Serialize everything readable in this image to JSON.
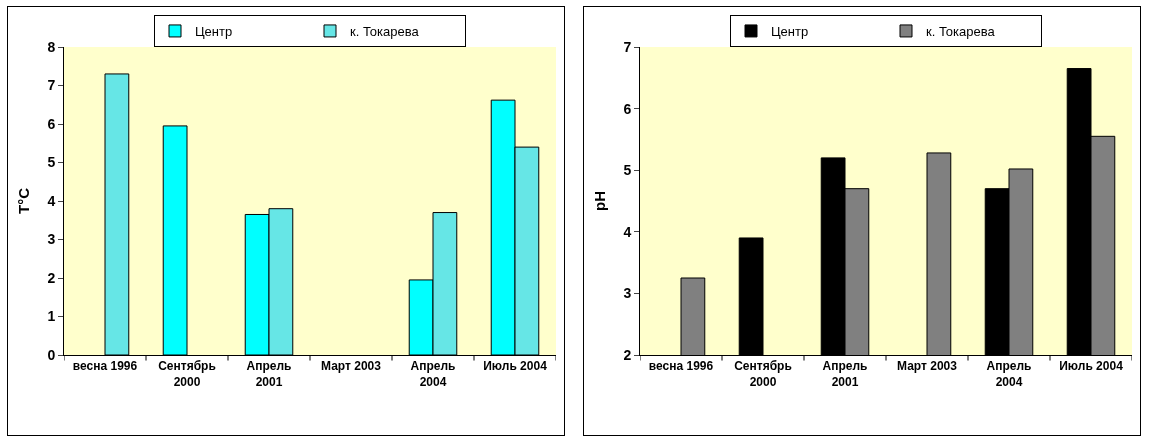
{
  "chart_data": [
    {
      "type": "bar",
      "ylabel": "T°C",
      "categories": [
        "весна 1996",
        "Сентябрь 2000",
        "Апрель 2001",
        "Март 2003",
        "Апрель 2004",
        "Июль 2004"
      ],
      "series": [
        {
          "name": "Центр",
          "color": "#00ffff",
          "values": [
            null,
            5.95,
            3.65,
            null,
            1.95,
            6.62
          ]
        },
        {
          "name": "к. Токарева",
          "color": "#66e6e6",
          "values": [
            7.3,
            null,
            3.8,
            null,
            3.7,
            5.4
          ]
        }
      ],
      "ylim": [
        0,
        8
      ],
      "yticks": [
        0,
        1,
        2,
        3,
        4,
        5,
        6,
        7,
        8
      ],
      "grid": false,
      "legend": "top"
    },
    {
      "type": "bar",
      "ylabel": "pH",
      "categories": [
        "весна 1996",
        "Сентябрь 2000",
        "Апрель 2001",
        "Март 2003",
        "Апрель 2004",
        "Июль 2004"
      ],
      "series": [
        {
          "name": "Центр",
          "color": "#000000",
          "values": [
            null,
            3.9,
            5.2,
            null,
            4.7,
            6.65
          ]
        },
        {
          "name": "к. Токарева",
          "color": "#808080",
          "values": [
            3.25,
            null,
            4.7,
            5.28,
            5.02,
            5.55
          ]
        }
      ],
      "ylim": [
        2,
        7
      ],
      "yticks": [
        2,
        3,
        4,
        5,
        6,
        7
      ],
      "grid": false,
      "legend": "top"
    }
  ]
}
